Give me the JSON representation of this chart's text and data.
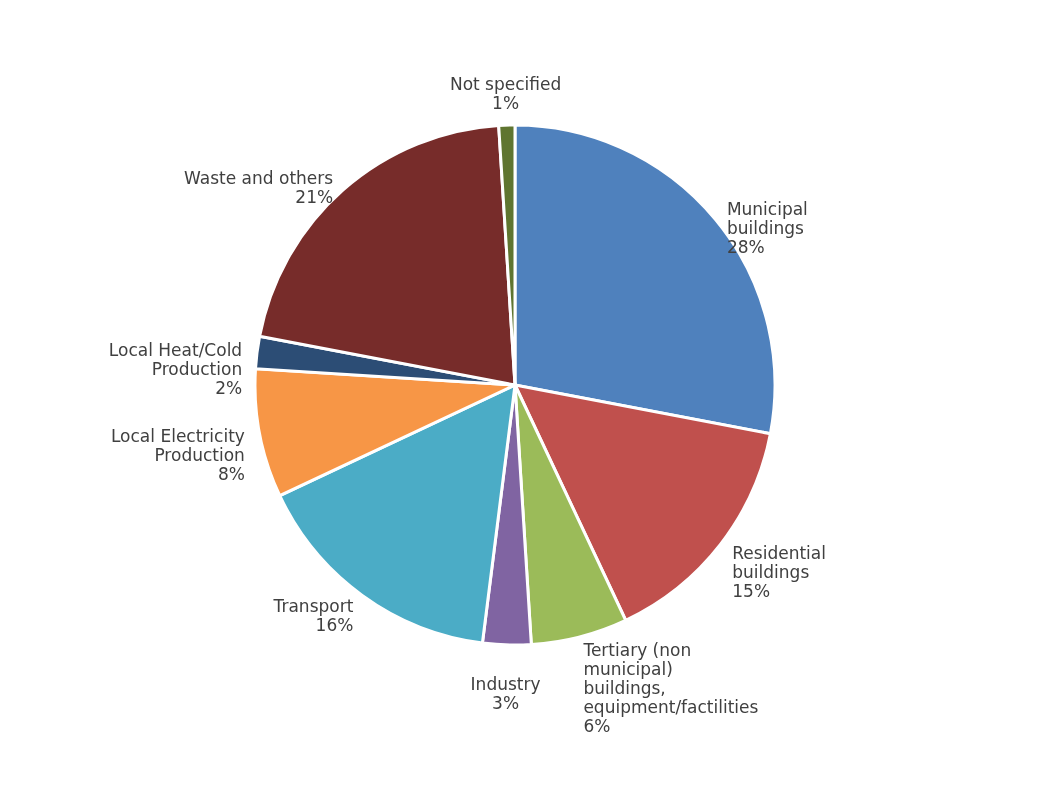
{
  "chart_data": {
    "type": "pie",
    "categories": [
      "Municipal buildings",
      "Residential buildings",
      "Tertiary (non municipal) buildings, equipment/factilities",
      "Industry",
      "Transport",
      "Local Electricity Production",
      "Local Heat/Cold Production",
      "Waste and others",
      "Not specified"
    ],
    "values": [
      28,
      15,
      6,
      3,
      16,
      8,
      2,
      21,
      1
    ],
    "value_labels": [
      "28%",
      "15%",
      "6%",
      "3%",
      "16%",
      "8%",
      "2%",
      "21%",
      "1%"
    ],
    "colors": [
      "#4f81bd",
      "#c0504d",
      "#9bbb59",
      "#8064a2",
      "#4bacc6",
      "#f79646",
      "#2c4d75",
      "#772c2a",
      "#5f7530"
    ],
    "legend": false
  }
}
